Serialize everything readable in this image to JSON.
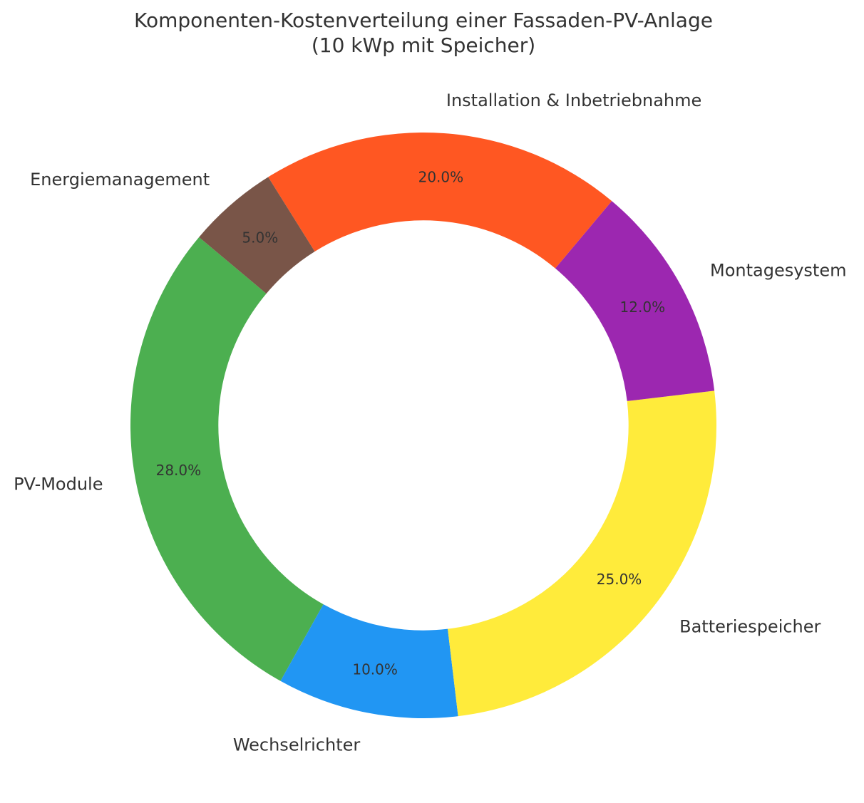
{
  "chart_data": {
    "type": "pie",
    "title": "Komponenten-Kostenverteilung einer Fassaden-PV-Anlage",
    "subtitle": "(10 kWp mit Speicher)",
    "donut": true,
    "inner_radius_ratio": 0.7,
    "start_angle_deg": 140,
    "direction": "counterclockwise",
    "categories": [
      "PV-Module",
      "Wechselrichter",
      "Batteriespeicher",
      "Montagesystem",
      "Installation & Inbetriebnahme",
      "Energiemanagement"
    ],
    "values": [
      28,
      10,
      25,
      12,
      20,
      5
    ],
    "percent_labels": [
      "28.0%",
      "10.0%",
      "25.0%",
      "12.0%",
      "20.0%",
      "5.0%"
    ],
    "colors": [
      "#4caf50",
      "#2196f3",
      "#ffeb3b",
      "#9c27b0",
      "#ff5722",
      "#795548"
    ],
    "unit": "%"
  }
}
